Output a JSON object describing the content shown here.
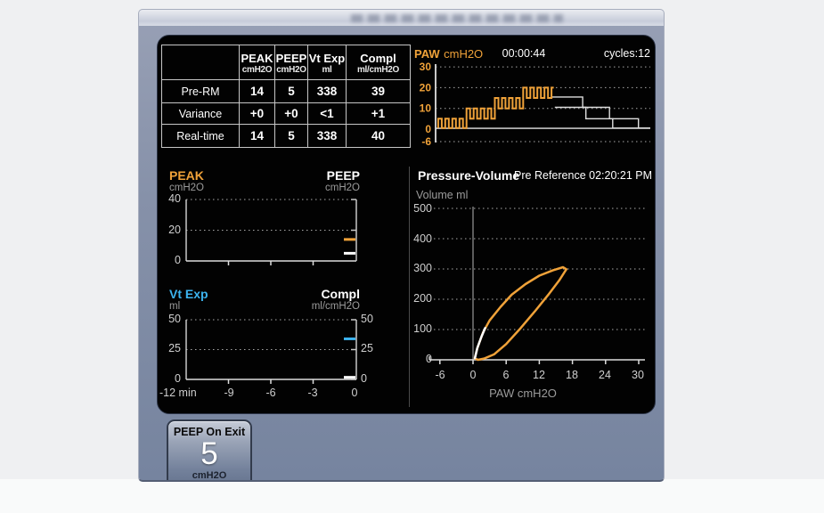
{
  "colors": {
    "orange": "#f0a239",
    "cyan": "#3cb4f0",
    "white": "#ffffff",
    "gray": "#9b9b9b"
  },
  "table": {
    "columns": [
      {
        "label": "PEAK",
        "unit": "cmH2O"
      },
      {
        "label": "PEEP",
        "unit": "cmH2O"
      },
      {
        "label": "Vt Exp",
        "unit": "ml"
      },
      {
        "label": "Compl",
        "unit": "ml/cmH2O"
      }
    ],
    "rows": [
      {
        "label": "Pre-RM",
        "values": [
          "14",
          "5",
          "338",
          "39"
        ]
      },
      {
        "label": "Variance",
        "values": [
          "+0",
          "+0",
          "<1",
          "+1"
        ]
      },
      {
        "label": "Real-time",
        "values": [
          "14",
          "5",
          "338",
          "40"
        ]
      }
    ]
  },
  "paw": {
    "label": "PAW",
    "unit": "cmH2O",
    "time": "00:00:44",
    "cycles": "cycles:12",
    "y_ticks": [
      {
        "label": "30",
        "value": 30
      },
      {
        "label": "20",
        "value": 20
      },
      {
        "label": "10",
        "value": 10
      },
      {
        "label": "0",
        "value": 0
      },
      {
        "label": "-6",
        "value": -6
      }
    ],
    "staircase_steps": [
      {
        "low": 0.5,
        "high": 5
      },
      {
        "low": 5,
        "high": 10
      },
      {
        "low": 10,
        "high": 15
      },
      {
        "low": 15,
        "high": 20
      }
    ],
    "planned_lines": [
      [
        [
          0.54,
          15.5
        ],
        [
          0.685,
          15.5
        ],
        [
          0.685,
          10.5
        ],
        [
          0.81,
          10.5
        ],
        [
          0.81,
          5
        ],
        [
          0.945,
          5
        ],
        [
          0.945,
          0.5
        ],
        [
          1,
          0.5
        ]
      ],
      [
        [
          0.555,
          10.5
        ],
        [
          0.7,
          10.5
        ],
        [
          0.7,
          5
        ],
        [
          0.825,
          5
        ],
        [
          0.825,
          0.5
        ],
        [
          1,
          0.5
        ]
      ]
    ],
    "baseline_value": 0.4
  },
  "trend_pressure": {
    "left_label": "PEAK",
    "left_unit": "cmH2O",
    "right_label": "PEEP",
    "right_unit": "cmH2O",
    "y_ticks": [
      "40",
      "20",
      "0"
    ],
    "y_max": 40,
    "peak_marker": 14,
    "peep_marker": 5
  },
  "trend_volume": {
    "left_label": "Vt Exp",
    "left_unit": "ml",
    "right_label": "Compl",
    "right_unit": "ml/cmH2O",
    "left_ticks": [
      "50",
      "25",
      "0"
    ],
    "right_ticks": [
      "50",
      "25",
      "0"
    ],
    "x_ticks": [
      "-12 min",
      "-9",
      "-6",
      "-3",
      "0"
    ],
    "y_max": 50,
    "vt_marker": 34,
    "compl_marker": 1
  },
  "pv": {
    "title": "Pressure-Volume",
    "reference": "Pre Reference 02:20:21 PM",
    "volume_label": "Volume  ml",
    "x_label": "PAW  cmH2O",
    "y_ticks": [
      "500",
      "400",
      "300",
      "200",
      "100",
      "0"
    ],
    "x_ticks": [
      "-6",
      "0",
      "6",
      "12",
      "18",
      "24",
      "30"
    ],
    "loop": [
      [
        0.3,
        5
      ],
      [
        0.8,
        40
      ],
      [
        1.8,
        90
      ],
      [
        3,
        130
      ],
      [
        5,
        175
      ],
      [
        7,
        215
      ],
      [
        9.5,
        250
      ],
      [
        12,
        278
      ],
      [
        14.5,
        296
      ],
      [
        16.3,
        306
      ],
      [
        16.9,
        299
      ],
      [
        15.6,
        262
      ],
      [
        13.6,
        214
      ],
      [
        11.2,
        160
      ],
      [
        8.6,
        104
      ],
      [
        6,
        52
      ],
      [
        3.8,
        18
      ],
      [
        2,
        4
      ],
      [
        0.9,
        0
      ]
    ],
    "white_segment": [
      [
        0.35,
        6
      ],
      [
        0.75,
        38
      ],
      [
        1.5,
        75
      ],
      [
        2.2,
        105
      ]
    ]
  },
  "exit_button": {
    "label": "PEEP On Exit",
    "value": "5",
    "unit": "cmH2O"
  }
}
